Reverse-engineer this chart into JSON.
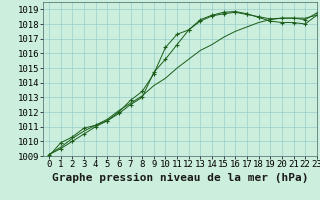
{
  "xlabel": "Graphe pression niveau de la mer (hPa)",
  "ylabel": "",
  "xlim": [
    -0.5,
    23
  ],
  "ylim": [
    1009,
    1019.5
  ],
  "yticks": [
    1009,
    1010,
    1011,
    1012,
    1013,
    1014,
    1015,
    1016,
    1017,
    1018,
    1019
  ],
  "xticks": [
    0,
    1,
    2,
    3,
    4,
    5,
    6,
    7,
    8,
    9,
    10,
    11,
    12,
    13,
    14,
    15,
    16,
    17,
    18,
    19,
    20,
    21,
    22,
    23
  ],
  "background_color": "#cceedd",
  "grid_color": "#99cccc",
  "line_color": "#1a5e1a",
  "line1_x": [
    0,
    1,
    2,
    3,
    4,
    5,
    6,
    7,
    8,
    9,
    10,
    11,
    12,
    13,
    14,
    15,
    16,
    17,
    18,
    19,
    20,
    21,
    22,
    23
  ],
  "line1_y": [
    1009.1,
    1009.5,
    1010.0,
    1010.5,
    1011.0,
    1011.4,
    1012.0,
    1012.8,
    1013.4,
    1014.6,
    1016.4,
    1017.3,
    1017.6,
    1018.2,
    1018.55,
    1018.7,
    1018.8,
    1018.65,
    1018.5,
    1018.35,
    1018.4,
    1018.4,
    1018.3,
    1018.75
  ],
  "line2_x": [
    0,
    1,
    2,
    3,
    4,
    5,
    6,
    7,
    8,
    9,
    10,
    11,
    12,
    13,
    14,
    15,
    16,
    17,
    18,
    19,
    20,
    21,
    22,
    23
  ],
  "line2_y": [
    1009.1,
    1009.6,
    1010.2,
    1010.7,
    1011.1,
    1011.5,
    1012.1,
    1012.6,
    1013.1,
    1013.8,
    1014.3,
    1015.0,
    1015.6,
    1016.2,
    1016.6,
    1017.1,
    1017.5,
    1017.8,
    1018.1,
    1018.3,
    1018.4,
    1018.4,
    1018.4,
    1018.6
  ],
  "line3_x": [
    0,
    1,
    2,
    3,
    4,
    5,
    6,
    7,
    8,
    9,
    10,
    11,
    12,
    13,
    14,
    15,
    16,
    17,
    18,
    19,
    20,
    21,
    22,
    23
  ],
  "line3_y": [
    1009.0,
    1009.9,
    1010.3,
    1010.9,
    1011.1,
    1011.4,
    1011.9,
    1012.5,
    1013.0,
    1014.7,
    1015.6,
    1016.6,
    1017.6,
    1018.3,
    1018.6,
    1018.8,
    1018.85,
    1018.7,
    1018.45,
    1018.2,
    1018.1,
    1018.1,
    1018.0,
    1018.6
  ],
  "xlabel_fontsize": 8,
  "tick_fontsize": 6.5
}
